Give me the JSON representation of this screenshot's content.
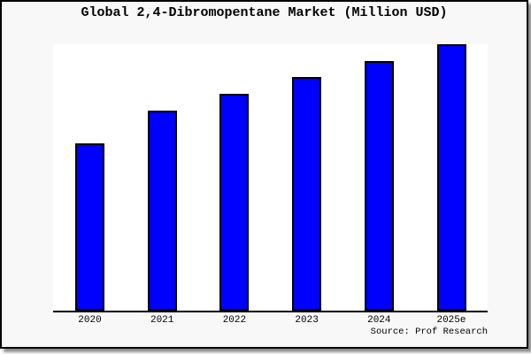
{
  "colors": {
    "bar_fill": "#0000FF",
    "bar_border": "#000000",
    "frame_background": "#F8F8F8",
    "frame_border": "#000000",
    "plot_background": "#FFFFFF",
    "axis": "#000000",
    "text": "#000000"
  },
  "chart_data": {
    "type": "bar",
    "title": "Global 2,4-Dibromopentane Market (Million USD)",
    "categories": [
      "2020",
      "2021",
      "2022",
      "2023",
      "2024",
      "2025e"
    ],
    "values_relative_pct_of_max": [
      62.8,
      75.1,
      81.4,
      87.7,
      93.7,
      100
    ],
    "value_axis_labels_shown": false,
    "data_labels_shown": false,
    "xlabel": "",
    "ylabel": "",
    "grid": false,
    "legend": "none",
    "source_note": "Source: Prof Research"
  }
}
